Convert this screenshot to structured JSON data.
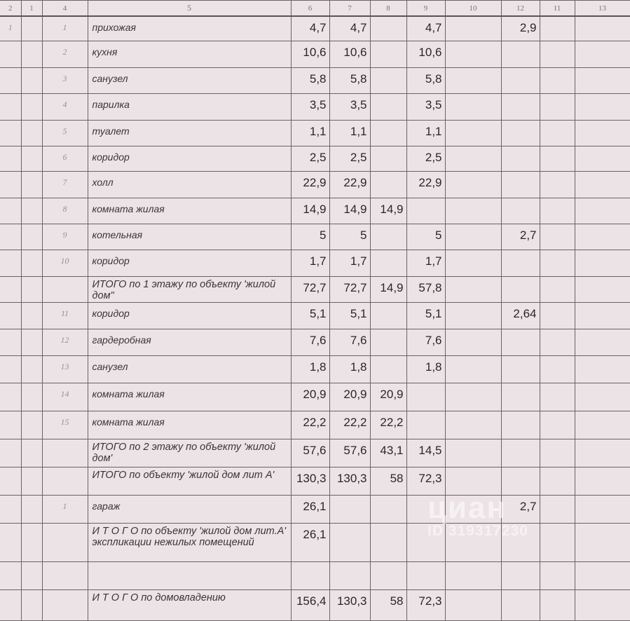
{
  "header": [
    "2",
    "1",
    "4",
    "5",
    "6",
    "7",
    "8",
    "9",
    "10",
    "12",
    "11",
    "13"
  ],
  "rows": [
    {
      "c1": "1",
      "c2": "",
      "c3": "1",
      "name": "прихожая",
      "v6": "4,7",
      "v7": "4,7",
      "v8": "",
      "v9": "4,7",
      "v10": "",
      "v12": "2,9",
      "v11": "",
      "v13": ""
    },
    {
      "c1": "",
      "c2": "",
      "c3": "2",
      "name": "кухня",
      "v6": "10,6",
      "v7": "10,6",
      "v8": "",
      "v9": "10,6",
      "v10": "",
      "v12": "",
      "v11": "",
      "v13": ""
    },
    {
      "c1": "",
      "c2": "",
      "c3": "3",
      "name": "санузел",
      "v6": "5,8",
      "v7": "5,8",
      "v8": "",
      "v9": "5,8",
      "v10": "",
      "v12": "",
      "v11": "",
      "v13": ""
    },
    {
      "c1": "",
      "c2": "",
      "c3": "4",
      "name": "парилка",
      "v6": "3,5",
      "v7": "3,5",
      "v8": "",
      "v9": "3,5",
      "v10": "",
      "v12": "",
      "v11": "",
      "v13": ""
    },
    {
      "c1": "",
      "c2": "",
      "c3": "5",
      "name": "туалет",
      "v6": "1,1",
      "v7": "1,1",
      "v8": "",
      "v9": "1,1",
      "v10": "",
      "v12": "",
      "v11": "",
      "v13": ""
    },
    {
      "c1": "",
      "c2": "",
      "c3": "6",
      "name": "коридор",
      "v6": "2,5",
      "v7": "2,5",
      "v8": "",
      "v9": "2,5",
      "v10": "",
      "v12": "",
      "v11": "",
      "v13": ""
    },
    {
      "c1": "",
      "c2": "",
      "c3": "7",
      "name": "холл",
      "v6": "22,9",
      "v7": "22,9",
      "v8": "",
      "v9": "22,9",
      "v10": "",
      "v12": "",
      "v11": "",
      "v13": ""
    },
    {
      "c1": "",
      "c2": "",
      "c3": "8",
      "name": "комната жилая",
      "v6": "14,9",
      "v7": "14,9",
      "v8": "14,9",
      "v9": "",
      "v10": "",
      "v12": "",
      "v11": "",
      "v13": ""
    },
    {
      "c1": "",
      "c2": "",
      "c3": "9",
      "name": "котельная",
      "v6": "5",
      "v7": "5",
      "v8": "",
      "v9": "5",
      "v10": "",
      "v12": "2,7",
      "v11": "",
      "v13": ""
    },
    {
      "c1": "",
      "c2": "",
      "c3": "10",
      "name": "коридор",
      "v6": "1,7",
      "v7": "1,7",
      "v8": "",
      "v9": "1,7",
      "v10": "",
      "v12": "",
      "v11": "",
      "v13": ""
    },
    {
      "c1": "",
      "c2": "",
      "c3": "",
      "name": "ИТОГО по 1 этажу  по объекту 'жилой дом\"",
      "total": true,
      "v6": "72,7",
      "v7": "72,7",
      "v8": "14,9",
      "v9": "57,8",
      "v10": "",
      "v12": "",
      "v11": "",
      "v13": ""
    },
    {
      "c1": "",
      "c2": "",
      "c3": "11",
      "name": "коридор",
      "v6": "5,1",
      "v7": "5,1",
      "v8": "",
      "v9": "5,1",
      "v10": "",
      "v12": "2,64",
      "v11": "",
      "v13": ""
    },
    {
      "c1": "",
      "c2": "",
      "c3": "12",
      "name": "гардеробная",
      "v6": "7,6",
      "v7": "7,6",
      "v8": "",
      "v9": "7,6",
      "v10": "",
      "v12": "",
      "v11": "",
      "v13": ""
    },
    {
      "c1": "",
      "c2": "",
      "c3": "13",
      "name": "санузел",
      "v6": "1,8",
      "v7": "1,8",
      "v8": "",
      "v9": "1,8",
      "v10": "",
      "v12": "",
      "v11": "",
      "v13": ""
    },
    {
      "c1": "",
      "c2": "",
      "c3": "14",
      "name": "комната жилая",
      "v6": "20,9",
      "v7": "20,9",
      "v8": "20,9",
      "v9": "",
      "v10": "",
      "v12": "",
      "v11": "",
      "v13": ""
    },
    {
      "c1": "",
      "c2": "",
      "c3": "15",
      "name": "комната жилая",
      "v6": "22,2",
      "v7": "22,2",
      "v8": "22,2",
      "v9": "",
      "v10": "",
      "v12": "",
      "v11": "",
      "v13": ""
    },
    {
      "c1": "",
      "c2": "",
      "c3": "",
      "name": "ИТОГО по 2 этажу  по объекту 'жилой дом'",
      "total": true,
      "v6": "57,6",
      "v7": "57,6",
      "v8": "43,1",
      "v9": "14,5",
      "v10": "",
      "v12": "",
      "v11": "",
      "v13": ""
    },
    {
      "c1": "",
      "c2": "",
      "c3": "",
      "name": "ИТОГО по объекту 'жилой дом лит А'",
      "total": true,
      "v6": "130,3",
      "v7": "130,3",
      "v8": "58",
      "v9": "72,3",
      "v10": "",
      "v12": "",
      "v11": "",
      "v13": ""
    },
    {
      "c1": "",
      "c2": "",
      "c3": "1",
      "name": "гараж",
      "v6": "26,1",
      "v7": "",
      "v8": "",
      "v9": "",
      "v10": "",
      "v12": "2,7",
      "v11": "",
      "v13": ""
    },
    {
      "c1": "",
      "c2": "",
      "c3": "",
      "name": "И Т О Г О по объекту 'жилой дом лит.А' экспликации нежилых помещений",
      "total": true,
      "v6": "26,1",
      "v7": "",
      "v8": "",
      "v9": "",
      "v10": "",
      "v12": "",
      "v11": "",
      "v13": ""
    },
    {
      "c1": "",
      "c2": "",
      "c3": "",
      "name": "",
      "v6": "",
      "v7": "",
      "v8": "",
      "v9": "",
      "v10": "",
      "v12": "",
      "v11": "",
      "v13": ""
    },
    {
      "c1": "",
      "c2": "",
      "c3": "",
      "name": "И Т О Г О по домовладению",
      "total": true,
      "v6": "156,4",
      "v7": "130,3",
      "v8": "58",
      "v9": "72,3",
      "v10": "",
      "v12": "",
      "v11": "",
      "v13": ""
    }
  ],
  "watermark": {
    "logo": "циан",
    "id": "ID 319317230"
  }
}
